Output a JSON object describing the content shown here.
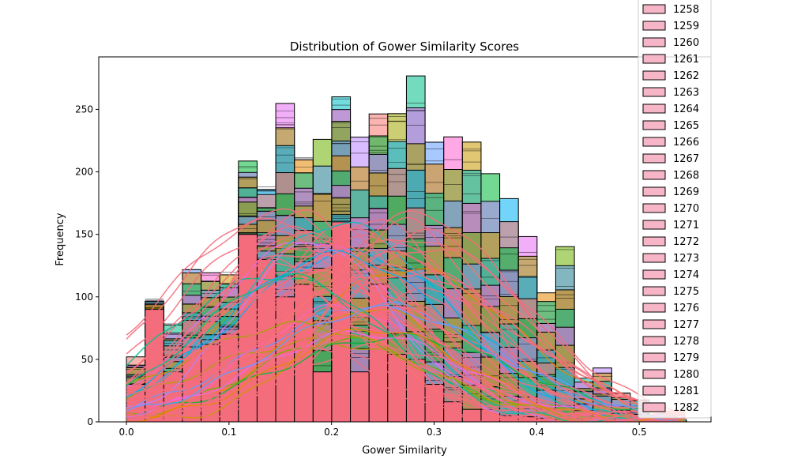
{
  "chart_data": {
    "type": "bar",
    "subtype": "overlaid histograms with KDE curves",
    "title": "Distribution of Gower Similarity Scores",
    "xlabel": "Gower Similarity",
    "ylabel": "Frequency",
    "xlim": [
      -0.027,
      0.57
    ],
    "ylim": [
      0,
      292
    ],
    "xticks": [
      0.0,
      0.1,
      0.2,
      0.3,
      0.4,
      0.5
    ],
    "xtick_labels": [
      "0.0",
      "0.1",
      "0.2",
      "0.3",
      "0.4",
      "0.5"
    ],
    "yticks": [
      0,
      50,
      100,
      150,
      200,
      250
    ],
    "ytick_labels": [
      "0",
      "50",
      "100",
      "150",
      "200",
      "250"
    ],
    "bin_width": 0.0182,
    "bin_starts": [
      0.0,
      0.0182,
      0.0364,
      0.0546,
      0.0728,
      0.091,
      0.1092,
      0.1274,
      0.1456,
      0.1638,
      0.182,
      0.2002,
      0.2184,
      0.2366,
      0.2548,
      0.273,
      0.2912,
      0.3094,
      0.3276,
      0.3458,
      0.364,
      0.3822,
      0.4004,
      0.4186,
      0.4368,
      0.455,
      0.4732,
      0.4914,
      0.5096,
      0.5278
    ],
    "envelope_max_counts": [
      52,
      99,
      81,
      127,
      121,
      120,
      210,
      190,
      256,
      212,
      229,
      264,
      229,
      248,
      249,
      278,
      229,
      230,
      228,
      199,
      183,
      149,
      108,
      142,
      40,
      48,
      25,
      21,
      5,
      3
    ],
    "front_series_counts": [
      30,
      90,
      40,
      60,
      62,
      70,
      150,
      130,
      100,
      110,
      40,
      160,
      40,
      110,
      54,
      50,
      30,
      16,
      10,
      10,
      5,
      4,
      3,
      2,
      2,
      1,
      0,
      0,
      0,
      0
    ],
    "legend": {
      "placement": "right, outside axes (clipped at top)",
      "entries": [
        "1258",
        "1259",
        "1260",
        "1261",
        "1262",
        "1263",
        "1264",
        "1265",
        "1266",
        "1267",
        "1268",
        "1269",
        "1270",
        "1271",
        "1272",
        "1273",
        "1274",
        "1275",
        "1276",
        "1277",
        "1278",
        "1279",
        "1280",
        "1281",
        "1282"
      ],
      "swatch_color": "#f7b6c8"
    },
    "colors": {
      "front": "#f46d7c",
      "palette": [
        "#f8766d",
        "#e58700",
        "#c99800",
        "#a3a500",
        "#6bb100",
        "#00ba38",
        "#00c08b",
        "#00bfc4",
        "#00b0f6",
        "#619cff",
        "#b983ff",
        "#e76bf3",
        "#fd61d1"
      ]
    },
    "grid": false
  }
}
